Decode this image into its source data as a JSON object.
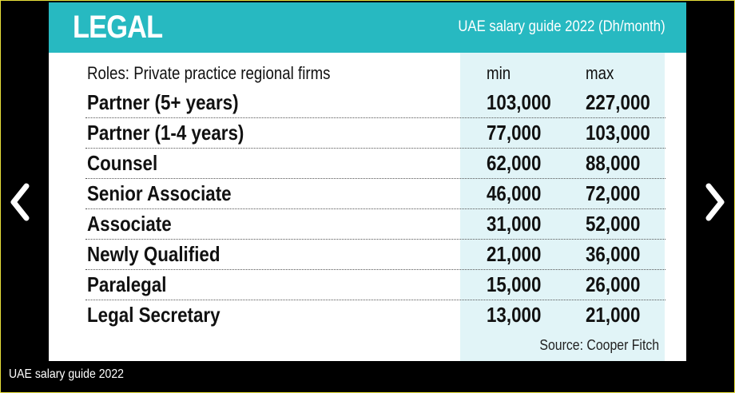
{
  "card": {
    "title": "LEGAL",
    "subtitle": "UAE salary guide 2022 (Dh/month)",
    "columns": {
      "role": "Roles: Private practice regional firms",
      "min": "min",
      "max": "max"
    },
    "rows": [
      {
        "role": "Partner (5+ years)",
        "min": "103,000",
        "max": "227,000"
      },
      {
        "role": "Partner (1-4 years)",
        "min": "77,000",
        "max": "103,000"
      },
      {
        "role": "Counsel",
        "min": "62,000",
        "max": "88,000"
      },
      {
        "role": "Senior Associate",
        "min": "46,000",
        "max": "72,000"
      },
      {
        "role": "Associate",
        "min": "31,000",
        "max": "52,000"
      },
      {
        "role": "Newly Qualified",
        "min": "21,000",
        "max": "36,000"
      },
      {
        "role": "Paralegal",
        "min": "15,000",
        "max": "26,000"
      },
      {
        "role": "Legal Secretary",
        "min": "13,000",
        "max": "21,000"
      }
    ],
    "source": "Source: Cooper Fitch"
  },
  "gallery": {
    "caption": "UAE salary guide 2022",
    "prev_icon": "chevron-left-icon",
    "next_icon": "chevron-right-icon"
  },
  "colors": {
    "header": "#27b9c1",
    "band": "#e1f4f7",
    "frame": "#e8df3a"
  }
}
